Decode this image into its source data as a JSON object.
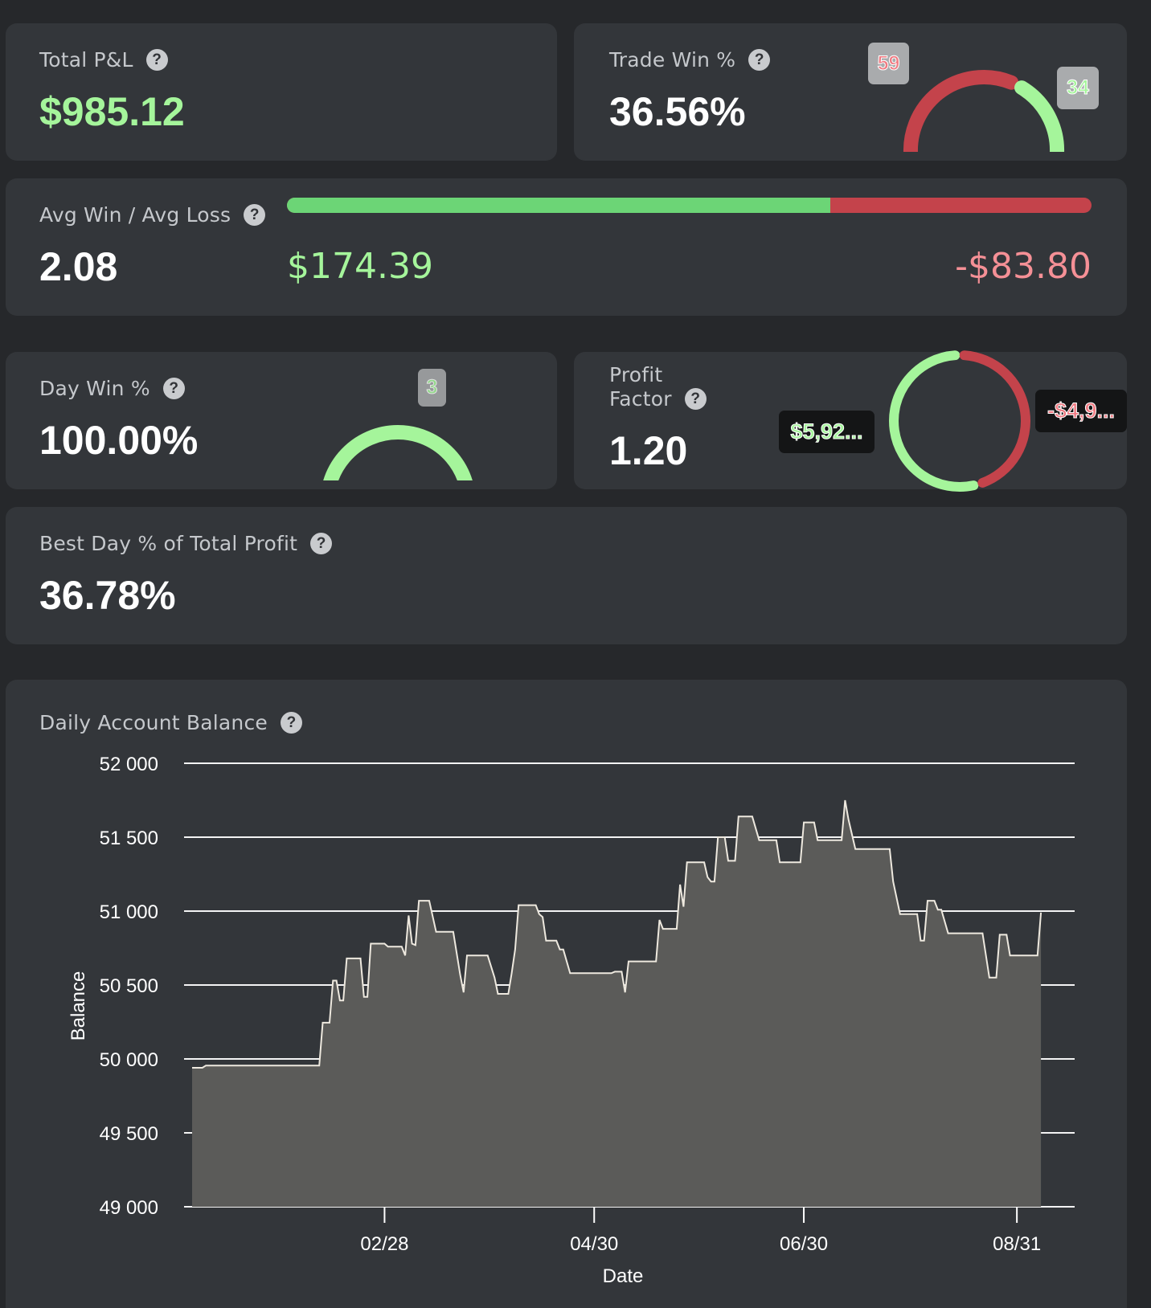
{
  "total_pnl": {
    "label": "Total P&L",
    "value": "$985.12"
  },
  "trade_win": {
    "label": "Trade Win %",
    "value": "36.56%",
    "loss_count": "59",
    "win_count": "34",
    "win_fraction": 0.3656
  },
  "avg_win_loss": {
    "label": "Avg Win / Avg Loss",
    "value": "2.08",
    "avg_win": "$174.39",
    "avg_loss": "-$83.80",
    "win_share": 0.675
  },
  "day_win": {
    "label": "Day Win %",
    "value": "100.00%",
    "win_days": "3",
    "win_fraction": 1.0
  },
  "profit_factor": {
    "label_line1": "Profit",
    "label_line2": "Factor",
    "value": "1.20",
    "gross_profit": "$5,92...",
    "gross_loss": "-$4,9...",
    "profit_share": 0.545
  },
  "best_day": {
    "label": "Best Day % of Total Profit",
    "value": "36.78%"
  },
  "help_icon": "?",
  "colors": {
    "green": "#a5f59b",
    "bar_green": "#6cd576",
    "red": "#c4434b",
    "loss_text": "#f59096",
    "card": "#33363a",
    "background": "#26282b"
  },
  "balance_chart": {
    "label": "Daily Account Balance",
    "chart_data": {
      "type": "area",
      "xlabel": "Date",
      "ylabel": "Balance",
      "ylim": [
        49000,
        52000
      ],
      "yticks": [
        52000,
        51500,
        51000,
        50500,
        50000,
        49500,
        49000
      ],
      "ytick_labels": [
        "52 000",
        "51 500",
        "51 000",
        "50 500",
        "50 000",
        "49 500",
        "49 000"
      ],
      "xlim": [
        "2025-01-03",
        "2025-09-14"
      ],
      "xticks": [
        "2025-02-28",
        "2025-04-30",
        "2025-06-30",
        "2025-08-31"
      ],
      "xtick_labels": [
        "02/28",
        "04/30",
        "06/30",
        "08/31"
      ],
      "grid": true,
      "series": [
        {
          "points": [
            [
              "2025-01-03",
              49940
            ],
            [
              "2025-01-06",
              49940
            ],
            [
              "2025-01-07",
              49955
            ],
            [
              "2025-01-10",
              49955
            ],
            [
              "2025-01-16",
              49955
            ],
            [
              "2025-01-23",
              49955
            ],
            [
              "2025-01-30",
              49955
            ],
            [
              "2025-02-06",
              49955
            ],
            [
              "2025-02-09",
              49955
            ],
            [
              "2025-02-10",
              50245
            ],
            [
              "2025-02-12",
              50245
            ],
            [
              "2025-02-13",
              50530
            ],
            [
              "2025-02-14",
              50530
            ],
            [
              "2025-02-15",
              50395
            ],
            [
              "2025-02-16",
              50395
            ],
            [
              "2025-02-17",
              50680
            ],
            [
              "2025-02-21",
              50680
            ],
            [
              "2025-02-22",
              50420
            ],
            [
              "2025-02-23",
              50420
            ],
            [
              "2025-02-24",
              50780
            ],
            [
              "2025-02-28",
              50780
            ],
            [
              "2025-03-01",
              50760
            ],
            [
              "2025-03-05",
              50760
            ],
            [
              "2025-03-06",
              50700
            ],
            [
              "2025-03-07",
              50970
            ],
            [
              "2025-03-08",
              50780
            ],
            [
              "2025-03-09",
              50770
            ],
            [
              "2025-03-10",
              51070
            ],
            [
              "2025-03-13",
              51070
            ],
            [
              "2025-03-15",
              50860
            ],
            [
              "2025-03-20",
              50860
            ],
            [
              "2025-03-22",
              50570
            ],
            [
              "2025-03-23",
              50450
            ],
            [
              "2025-03-24",
              50700
            ],
            [
              "2025-03-30",
              50700
            ],
            [
              "2025-04-01",
              50550
            ],
            [
              "2025-04-02",
              50440
            ],
            [
              "2025-04-05",
              50440
            ],
            [
              "2025-04-06",
              50580
            ],
            [
              "2025-04-07",
              50740
            ],
            [
              "2025-04-08",
              51040
            ],
            [
              "2025-04-13",
              51040
            ],
            [
              "2025-04-14",
              50980
            ],
            [
              "2025-04-15",
              50960
            ],
            [
              "2025-04-16",
              50800
            ],
            [
              "2025-04-19",
              50800
            ],
            [
              "2025-04-20",
              50740
            ],
            [
              "2025-04-21",
              50740
            ],
            [
              "2025-04-23",
              50580
            ],
            [
              "2025-04-25",
              50580
            ],
            [
              "2025-04-30",
              50580
            ],
            [
              "2025-05-05",
              50580
            ],
            [
              "2025-05-06",
              50590
            ],
            [
              "2025-05-08",
              50590
            ],
            [
              "2025-05-09",
              50450
            ],
            [
              "2025-05-10",
              50660
            ],
            [
              "2025-05-14",
              50660
            ],
            [
              "2025-05-18",
              50660
            ],
            [
              "2025-05-19",
              50940
            ],
            [
              "2025-05-20",
              50880
            ],
            [
              "2025-05-24",
              50880
            ],
            [
              "2025-05-25",
              51180
            ],
            [
              "2025-05-26",
              51030
            ],
            [
              "2025-05-27",
              51330
            ],
            [
              "2025-06-01",
              51330
            ],
            [
              "2025-06-02",
              51230
            ],
            [
              "2025-06-03",
              51200
            ],
            [
              "2025-06-04",
              51200
            ],
            [
              "2025-06-05",
              51500
            ],
            [
              "2025-06-07",
              51500
            ],
            [
              "2025-06-08",
              51340
            ],
            [
              "2025-06-10",
              51340
            ],
            [
              "2025-06-11",
              51640
            ],
            [
              "2025-06-15",
              51640
            ],
            [
              "2025-06-17",
              51480
            ],
            [
              "2025-06-22",
              51480
            ],
            [
              "2025-06-23",
              51330
            ],
            [
              "2025-06-29",
              51330
            ],
            [
              "2025-06-30",
              51600
            ],
            [
              "2025-07-03",
              51600
            ],
            [
              "2025-07-04",
              51480
            ],
            [
              "2025-07-11",
              51480
            ],
            [
              "2025-07-12",
              51750
            ],
            [
              "2025-07-13",
              51620
            ],
            [
              "2025-07-15",
              51420
            ],
            [
              "2025-07-20",
              51420
            ],
            [
              "2025-07-25",
              51420
            ],
            [
              "2025-07-26",
              51200
            ],
            [
              "2025-07-28",
              50980
            ],
            [
              "2025-08-02",
              50980
            ],
            [
              "2025-08-03",
              50800
            ],
            [
              "2025-08-04",
              50800
            ],
            [
              "2025-08-05",
              51070
            ],
            [
              "2025-08-07",
              51070
            ],
            [
              "2025-08-08",
              51010
            ],
            [
              "2025-08-09",
              51010
            ],
            [
              "2025-08-11",
              50850
            ],
            [
              "2025-08-16",
              50850
            ],
            [
              "2025-08-21",
              50850
            ],
            [
              "2025-08-23",
              50550
            ],
            [
              "2025-08-25",
              50550
            ],
            [
              "2025-08-26",
              50840
            ],
            [
              "2025-08-28",
              50840
            ],
            [
              "2025-08-29",
              50700
            ],
            [
              "2025-09-04",
              50700
            ],
            [
              "2025-09-06",
              50700
            ],
            [
              "2025-09-07",
              50990
            ]
          ]
        }
      ]
    }
  }
}
